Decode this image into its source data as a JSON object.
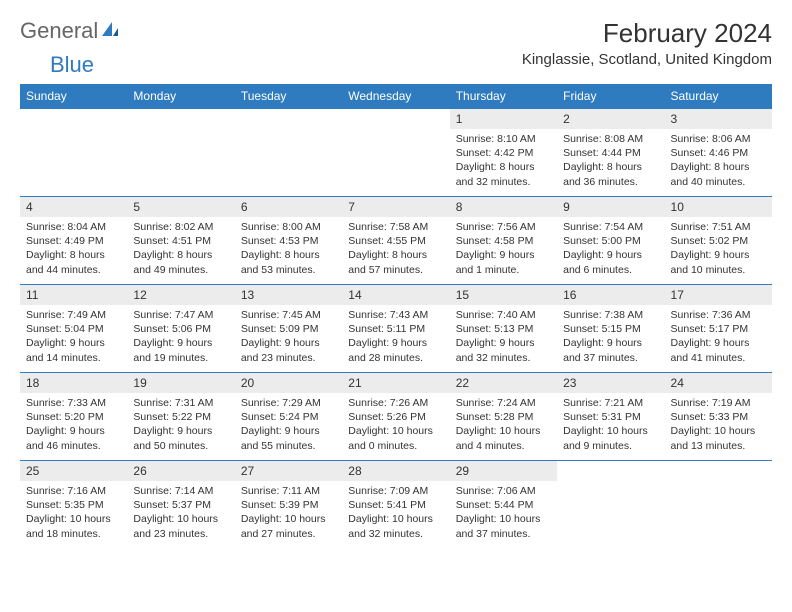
{
  "logo": {
    "part1": "General",
    "part2": "Blue"
  },
  "month_title": "February 2024",
  "location": "Kinglassie, Scotland, United Kingdom",
  "colors": {
    "header_bg": "#2f7bbf",
    "header_fg": "#ffffff",
    "daynum_bg": "#ececec",
    "border": "#2f7bbf",
    "text": "#333333",
    "logo_gray": "#666666",
    "logo_blue": "#2f7bbf"
  },
  "day_headers": [
    "Sunday",
    "Monday",
    "Tuesday",
    "Wednesday",
    "Thursday",
    "Friday",
    "Saturday"
  ],
  "weeks": [
    [
      null,
      null,
      null,
      null,
      {
        "n": "1",
        "sr": "8:10 AM",
        "ss": "4:42 PM",
        "dl": "8 hours and 32 minutes."
      },
      {
        "n": "2",
        "sr": "8:08 AM",
        "ss": "4:44 PM",
        "dl": "8 hours and 36 minutes."
      },
      {
        "n": "3",
        "sr": "8:06 AM",
        "ss": "4:46 PM",
        "dl": "8 hours and 40 minutes."
      }
    ],
    [
      {
        "n": "4",
        "sr": "8:04 AM",
        "ss": "4:49 PM",
        "dl": "8 hours and 44 minutes."
      },
      {
        "n": "5",
        "sr": "8:02 AM",
        "ss": "4:51 PM",
        "dl": "8 hours and 49 minutes."
      },
      {
        "n": "6",
        "sr": "8:00 AM",
        "ss": "4:53 PM",
        "dl": "8 hours and 53 minutes."
      },
      {
        "n": "7",
        "sr": "7:58 AM",
        "ss": "4:55 PM",
        "dl": "8 hours and 57 minutes."
      },
      {
        "n": "8",
        "sr": "7:56 AM",
        "ss": "4:58 PM",
        "dl": "9 hours and 1 minute."
      },
      {
        "n": "9",
        "sr": "7:54 AM",
        "ss": "5:00 PM",
        "dl": "9 hours and 6 minutes."
      },
      {
        "n": "10",
        "sr": "7:51 AM",
        "ss": "5:02 PM",
        "dl": "9 hours and 10 minutes."
      }
    ],
    [
      {
        "n": "11",
        "sr": "7:49 AM",
        "ss": "5:04 PM",
        "dl": "9 hours and 14 minutes."
      },
      {
        "n": "12",
        "sr": "7:47 AM",
        "ss": "5:06 PM",
        "dl": "9 hours and 19 minutes."
      },
      {
        "n": "13",
        "sr": "7:45 AM",
        "ss": "5:09 PM",
        "dl": "9 hours and 23 minutes."
      },
      {
        "n": "14",
        "sr": "7:43 AM",
        "ss": "5:11 PM",
        "dl": "9 hours and 28 minutes."
      },
      {
        "n": "15",
        "sr": "7:40 AM",
        "ss": "5:13 PM",
        "dl": "9 hours and 32 minutes."
      },
      {
        "n": "16",
        "sr": "7:38 AM",
        "ss": "5:15 PM",
        "dl": "9 hours and 37 minutes."
      },
      {
        "n": "17",
        "sr": "7:36 AM",
        "ss": "5:17 PM",
        "dl": "9 hours and 41 minutes."
      }
    ],
    [
      {
        "n": "18",
        "sr": "7:33 AM",
        "ss": "5:20 PM",
        "dl": "9 hours and 46 minutes."
      },
      {
        "n": "19",
        "sr": "7:31 AM",
        "ss": "5:22 PM",
        "dl": "9 hours and 50 minutes."
      },
      {
        "n": "20",
        "sr": "7:29 AM",
        "ss": "5:24 PM",
        "dl": "9 hours and 55 minutes."
      },
      {
        "n": "21",
        "sr": "7:26 AM",
        "ss": "5:26 PM",
        "dl": "10 hours and 0 minutes."
      },
      {
        "n": "22",
        "sr": "7:24 AM",
        "ss": "5:28 PM",
        "dl": "10 hours and 4 minutes."
      },
      {
        "n": "23",
        "sr": "7:21 AM",
        "ss": "5:31 PM",
        "dl": "10 hours and 9 minutes."
      },
      {
        "n": "24",
        "sr": "7:19 AM",
        "ss": "5:33 PM",
        "dl": "10 hours and 13 minutes."
      }
    ],
    [
      {
        "n": "25",
        "sr": "7:16 AM",
        "ss": "5:35 PM",
        "dl": "10 hours and 18 minutes."
      },
      {
        "n": "26",
        "sr": "7:14 AM",
        "ss": "5:37 PM",
        "dl": "10 hours and 23 minutes."
      },
      {
        "n": "27",
        "sr": "7:11 AM",
        "ss": "5:39 PM",
        "dl": "10 hours and 27 minutes."
      },
      {
        "n": "28",
        "sr": "7:09 AM",
        "ss": "5:41 PM",
        "dl": "10 hours and 32 minutes."
      },
      {
        "n": "29",
        "sr": "7:06 AM",
        "ss": "5:44 PM",
        "dl": "10 hours and 37 minutes."
      },
      null,
      null
    ]
  ],
  "labels": {
    "sunrise": "Sunrise: ",
    "sunset": "Sunset: ",
    "daylight": "Daylight: "
  }
}
